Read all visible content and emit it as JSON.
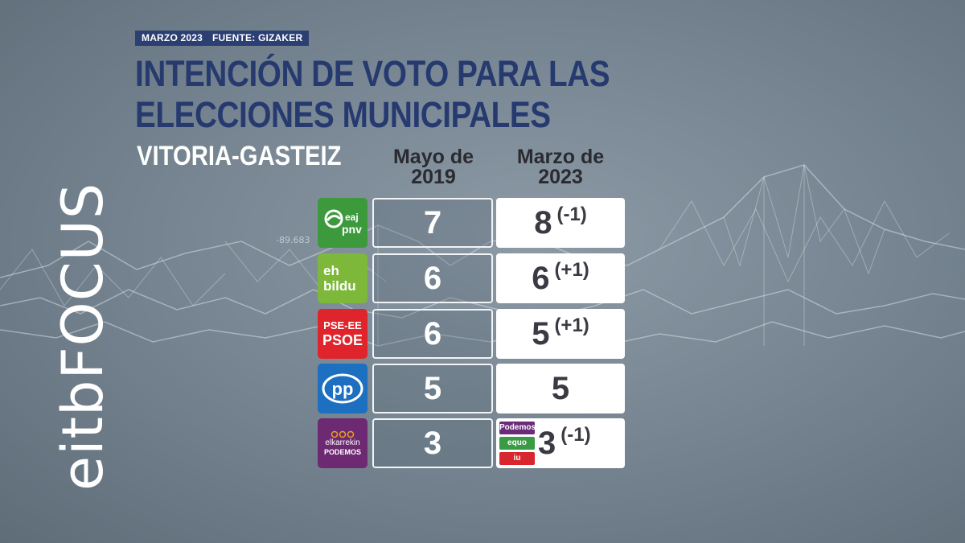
{
  "meta": {
    "date": "MARZO 2023",
    "source": "FUENTE: GIZAKER"
  },
  "title": "INTENCIÓN DE VOTO PARA LAS ELECCIONES MUNICIPALES",
  "subtitle": "VITORIA-GASTEIZ",
  "columns": {
    "previous": "Mayo de 2019",
    "current": "Marzo de 2023"
  },
  "background_number": "-89.683",
  "branding": {
    "eitb": "eitb",
    "focus": "FOCUS"
  },
  "rows": [
    {
      "party": "EAJ-PNV",
      "logo_lines": [
        "eaj",
        "pnv"
      ],
      "logo_color": "#3c9a3c",
      "previous": "7",
      "current": "8",
      "change": "(-1)"
    },
    {
      "party": "EH Bildu",
      "logo_lines": [
        "eh",
        "bildu"
      ],
      "logo_color": "#7db83a",
      "previous": "6",
      "current": "6",
      "change": "(+1)"
    },
    {
      "party": "PSE-EE PSOE",
      "logo_lines": [
        "PSE-EE",
        "PSOE"
      ],
      "logo_color": "#e0242c",
      "previous": "6",
      "current": "5",
      "change": "(+1)"
    },
    {
      "party": "PP",
      "logo_lines": [
        "pp"
      ],
      "logo_color": "#1d6fc0",
      "previous": "5",
      "current": "5",
      "change": ""
    },
    {
      "party": "Elkarrekin Podemos",
      "logo_lines": [
        "elkarrekin",
        "PODEMOS"
      ],
      "logo_color": "#6d2a72",
      "previous": "3",
      "current": "3",
      "change": "(-1)",
      "coalition_badges": [
        {
          "label": "Podemos",
          "color": "#6b2a7a"
        },
        {
          "label": "equo",
          "color": "#3b9a44"
        },
        {
          "label": "iu",
          "color": "#d8262e"
        }
      ]
    }
  ]
}
